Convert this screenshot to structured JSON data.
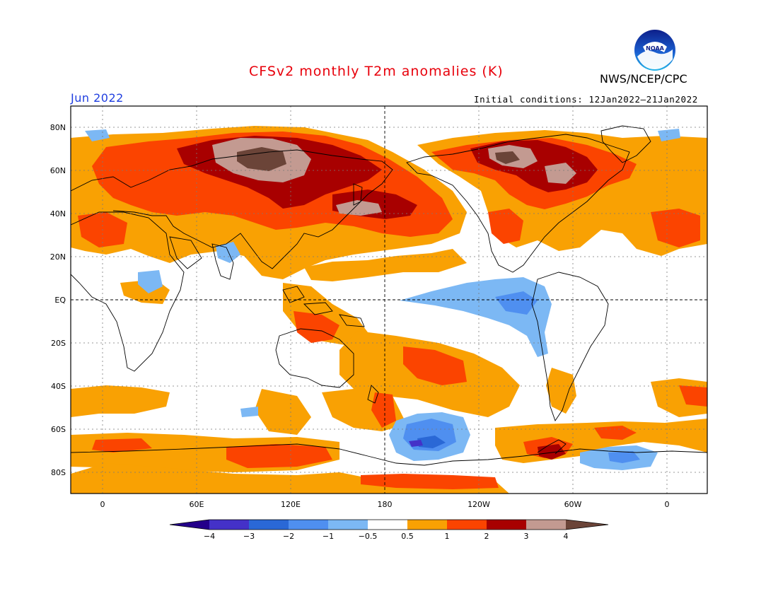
{
  "header": {
    "title": "CFSv2 monthly T2m anomalies (K)",
    "title_color": "#e8000b",
    "org": "NWS/NCEP/CPC",
    "month": "Jun 2022",
    "month_color": "#1f3ee0",
    "init": "Initial conditions: 12Jan2022–21Jan2022"
  },
  "logo": {
    "icon": "noaa-logo-icon",
    "text": "NOAA"
  },
  "map": {
    "lat_labels": [
      "80N",
      "60N",
      "40N",
      "20N",
      "EQ",
      "20S",
      "40S",
      "60S",
      "80S"
    ],
    "lon_labels": [
      "0",
      "60E",
      "120E",
      "180",
      "120W",
      "60W",
      "0"
    ],
    "colors": {
      "lt_neg4": "#24008a",
      "neg4_neg3": "#4431c8",
      "neg3_neg2": "#2a68d6",
      "neg2_neg1": "#4f8ff0",
      "neg1_neg05": "#7cb8f4",
      "neutral": "#ffffff",
      "p05_1": "#f9a103",
      "p1_2": "#fb4400",
      "p2_3": "#a80000",
      "p3_4": "#c39a91",
      "gt4": "#6b4438"
    }
  },
  "legend": {
    "labels": [
      "−4",
      "−3",
      "−2",
      "−1",
      "−0.5",
      "0.5",
      "1",
      "2",
      "3",
      "4"
    ],
    "colors": [
      "#24008a",
      "#4431c8",
      "#2a68d6",
      "#4f8ff0",
      "#7cb8f4",
      "#ffffff",
      "#f9a103",
      "#fb4400",
      "#a80000",
      "#c39a91",
      "#6b4438"
    ]
  }
}
